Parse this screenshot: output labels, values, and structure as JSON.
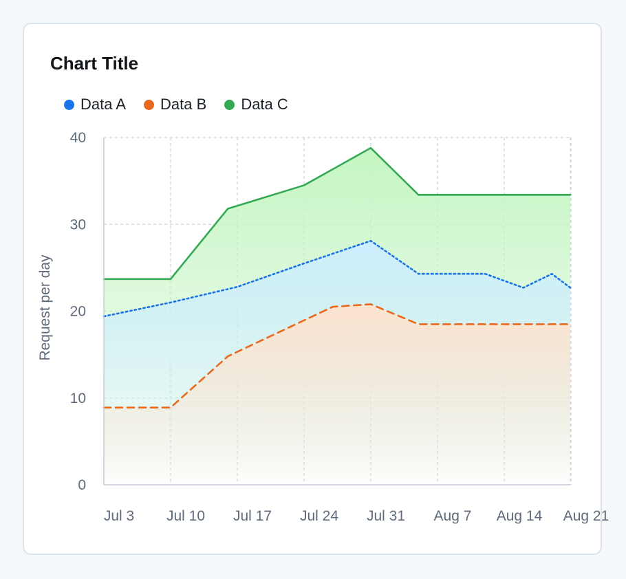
{
  "chart_data": {
    "type": "area",
    "title": "Chart Title",
    "ylabel": "Request per day",
    "xlabel": "",
    "ylim": [
      0,
      40
    ],
    "yticks": [
      0,
      10,
      20,
      30,
      40
    ],
    "xticks": [
      "Jul 3",
      "Jul 10",
      "Jul 17",
      "Jul 24",
      "Jul 31",
      "Aug 7",
      "Aug 14",
      "Aug 21"
    ],
    "grid": true,
    "legend": "top-left",
    "series": [
      {
        "name": "Data A",
        "color": "#1a73e8",
        "line": "dotted",
        "fill": "#cdeefd",
        "points": [
          [
            "Jul 3",
            19.4
          ],
          [
            "Jul 10",
            21
          ],
          [
            "Jul 17",
            22.8
          ],
          [
            "Jul 24",
            25.5
          ],
          [
            "Jul 31",
            28.1
          ],
          [
            "Aug 5",
            24.3
          ],
          [
            "Aug 12",
            24.3
          ],
          [
            "Aug 16",
            22.7
          ],
          [
            "Aug 19",
            24.3
          ],
          [
            "Aug 23",
            22.7
          ]
        ]
      },
      {
        "name": "Data B",
        "color": "#e8691e",
        "line": "dashed",
        "fill": "#fde3cf",
        "points": [
          [
            "Jul 3",
            8.9
          ],
          [
            "Jul 10",
            8.9
          ],
          [
            "Jul 16",
            14.8
          ],
          [
            "Jul 27",
            20.5
          ],
          [
            "Jul 31",
            20.8
          ],
          [
            "Aug 5",
            18.5
          ],
          [
            "Aug 12",
            18.5
          ],
          [
            "Aug 23",
            18.5
          ]
        ]
      },
      {
        "name": "Data C",
        "color": "#34a853",
        "line": "solid",
        "fill": "#c4f5c2",
        "points": [
          [
            "Jul 3",
            23.7
          ],
          [
            "Jul 10",
            23.7
          ],
          [
            "Jul 16",
            31.8
          ],
          [
            "Jul 24",
            34.5
          ],
          [
            "Jul 31",
            38.8
          ],
          [
            "Aug 5",
            33.4
          ],
          [
            "Aug 12",
            33.4
          ],
          [
            "Aug 23",
            33.4
          ]
        ]
      }
    ]
  }
}
